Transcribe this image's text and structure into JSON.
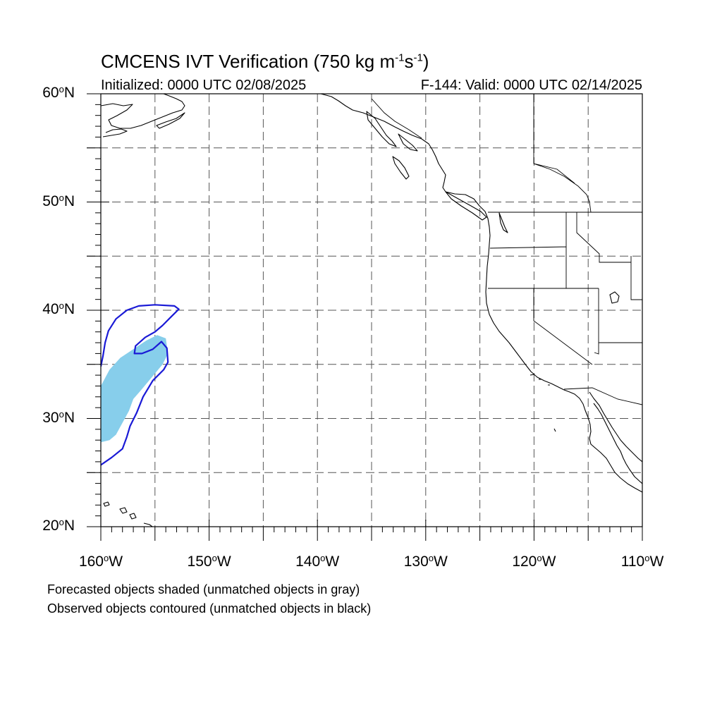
{
  "title": {
    "main": "CMCENS IVT Verification (750 kg m",
    "exp1": "-1",
    "mid": "s",
    "exp2": "-1",
    "end": ")"
  },
  "subtitle": {
    "initialized": "Initialized: 0000 UTC 02/08/2025",
    "valid": "F-144: Valid: 0000 UTC 02/14/2025"
  },
  "axes": {
    "lat_labels": [
      {
        "num": "60",
        "hemi": "N",
        "lat": 60
      },
      {
        "num": "50",
        "hemi": "N",
        "lat": 50
      },
      {
        "num": "40",
        "hemi": "N",
        "lat": 40
      },
      {
        "num": "30",
        "hemi": "N",
        "lat": 30
      },
      {
        "num": "20",
        "hemi": "N",
        "lat": 20
      }
    ],
    "lon_labels": [
      {
        "num": "160",
        "hemi": "W",
        "lon": -160
      },
      {
        "num": "150",
        "hemi": "W",
        "lon": -150
      },
      {
        "num": "140",
        "hemi": "W",
        "lon": -140
      },
      {
        "num": "130",
        "hemi": "W",
        "lon": -130
      },
      {
        "num": "120",
        "hemi": "W",
        "lon": -120
      },
      {
        "num": "110",
        "hemi": "W",
        "lon": -110
      }
    ],
    "lat_range": [
      20,
      60
    ],
    "lon_range": [
      -160,
      -110
    ],
    "grid_spacing_deg": 5,
    "degree_symbol": "o"
  },
  "legend": {
    "forecast_note": "Forecasted objects shaded (unmatched objects in gray)",
    "observed_note": "Observed objects contoured (unmatched objects in black)"
  },
  "colors": {
    "forecast_fill": "#87ceeb",
    "observed_contour": "#1a1ad6",
    "coast": "#000000",
    "grid": "#555555"
  },
  "forecast_object": [
    [
      -160,
      33.0
    ],
    [
      -159.2,
      34.5
    ],
    [
      -158.2,
      35.6
    ],
    [
      -157.0,
      36.4
    ],
    [
      -155.8,
      37.2
    ],
    [
      -154.8,
      37.7
    ],
    [
      -154.0,
      37.4
    ],
    [
      -153.8,
      36.0
    ],
    [
      -154.3,
      35.0
    ],
    [
      -155.3,
      33.8
    ],
    [
      -156.3,
      32.6
    ],
    [
      -157.0,
      31.8
    ],
    [
      -157.4,
      30.7
    ],
    [
      -158.0,
      29.6
    ],
    [
      -158.6,
      28.5
    ],
    [
      -159.2,
      28.0
    ],
    [
      -160,
      27.8
    ]
  ],
  "observed_object": [
    [
      -160,
      25.7
    ],
    [
      -159.0,
      26.4
    ],
    [
      -158.0,
      27.2
    ],
    [
      -157.6,
      28.3
    ],
    [
      -157.3,
      29.3
    ],
    [
      -156.7,
      30.5
    ],
    [
      -156.1,
      32.0
    ],
    [
      -155.2,
      33.5
    ],
    [
      -154.2,
      34.5
    ],
    [
      -153.8,
      35.2
    ],
    [
      -153.9,
      36.5
    ],
    [
      -154.4,
      37.1
    ],
    [
      -155.2,
      36.4
    ],
    [
      -156.2,
      36.0
    ],
    [
      -156.9,
      36.0
    ],
    [
      -156.8,
      36.7
    ],
    [
      -155.9,
      37.5
    ],
    [
      -155.0,
      38.0
    ],
    [
      -154.3,
      38.6
    ],
    [
      -153.5,
      39.4
    ],
    [
      -152.8,
      40.1
    ],
    [
      -153.2,
      40.4
    ],
    [
      -155.0,
      40.5
    ],
    [
      -156.5,
      40.4
    ],
    [
      -157.6,
      40.0
    ],
    [
      -158.6,
      39.2
    ],
    [
      -159.3,
      38.1
    ],
    [
      -159.6,
      37.0
    ],
    [
      -159.8,
      35.8
    ],
    [
      -160,
      34.8
    ]
  ]
}
